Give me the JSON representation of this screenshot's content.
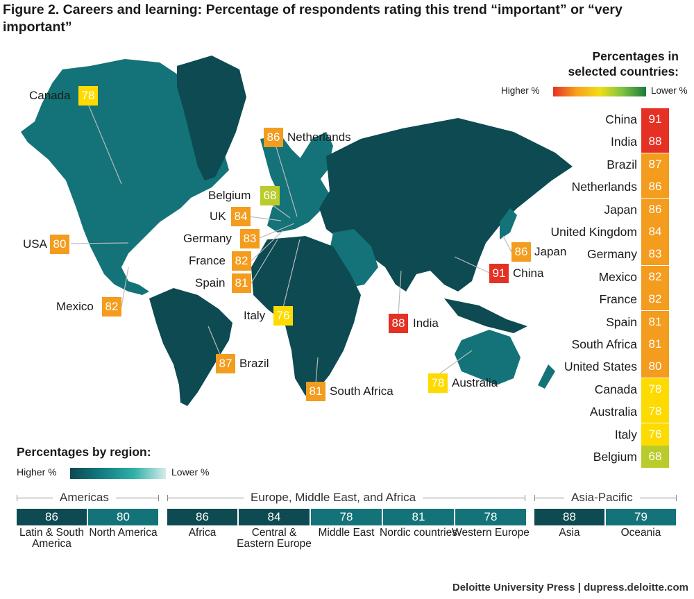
{
  "title": "Figure 2. Careers and learning: Percentage of respondents rating this trend “important” or “very important”",
  "sidebar": {
    "heading_line1": "Percentages in",
    "heading_line2": "selected countries:",
    "legend_high": "Higher %",
    "legend_low": "Lower %"
  },
  "region_section": {
    "heading": "Percentages by region:",
    "legend_high": "Higher %",
    "legend_low": "Lower %"
  },
  "footer": "Deloitte University Press  |  dupress.deloitte.com",
  "colors": {
    "dark_teal": "#0d4a51",
    "mid_teal": "#137378",
    "red": "#e53124",
    "orange": "#f39c1e",
    "yellow": "#fedb00",
    "green": "#b9cc2b"
  },
  "chart_data": [
    {
      "type": "table",
      "title": "Percentages in selected countries:",
      "countries": [
        {
          "name": "China",
          "value": 91,
          "color": "#e53124"
        },
        {
          "name": "India",
          "value": 88,
          "color": "#e53124"
        },
        {
          "name": "Brazil",
          "value": 87,
          "color": "#f39c1e"
        },
        {
          "name": "Netherlands",
          "value": 86,
          "color": "#f39c1e"
        },
        {
          "name": "Japan",
          "value": 86,
          "color": "#f39c1e"
        },
        {
          "name": "United Kingdom",
          "value": 84,
          "color": "#f39c1e"
        },
        {
          "name": "Germany",
          "value": 83,
          "color": "#f39c1e"
        },
        {
          "name": "Mexico",
          "value": 82,
          "color": "#f39c1e"
        },
        {
          "name": "France",
          "value": 82,
          "color": "#f39c1e"
        },
        {
          "name": "Spain",
          "value": 81,
          "color": "#f39c1e"
        },
        {
          "name": "South Africa",
          "value": 81,
          "color": "#f39c1e"
        },
        {
          "name": "United States",
          "value": 80,
          "color": "#f39c1e"
        },
        {
          "name": "Canada",
          "value": 78,
          "color": "#fedb00"
        },
        {
          "name": "Australia",
          "value": 78,
          "color": "#fedb00"
        },
        {
          "name": "Italy",
          "value": 76,
          "color": "#fedb00"
        },
        {
          "name": "Belgium",
          "value": 68,
          "color": "#b9cc2b"
        }
      ]
    },
    {
      "type": "table",
      "title": "Percentages by region:",
      "groups": [
        {
          "name": "Americas",
          "regions": [
            {
              "name": "Latin & South America",
              "value": 86,
              "color": "#0d4a51"
            },
            {
              "name": "North America",
              "value": 80,
              "color": "#137378"
            }
          ]
        },
        {
          "name": "Europe, Middle East, and Africa",
          "regions": [
            {
              "name": "Africa",
              "value": 86,
              "color": "#0d4a51"
            },
            {
              "name": "Central & Eastern Europe",
              "value": 84,
              "color": "#0d4a51"
            },
            {
              "name": "Middle East",
              "value": 78,
              "color": "#137378"
            },
            {
              "name": "Nordic countries",
              "value": 81,
              "color": "#137378"
            },
            {
              "name": "Western Europe",
              "value": 78,
              "color": "#137378"
            }
          ]
        },
        {
          "name": "Asia-Pacific",
          "regions": [
            {
              "name": "Asia",
              "value": 88,
              "color": "#0d4a51"
            },
            {
              "name": "Oceania",
              "value": 79,
              "color": "#137378"
            }
          ]
        }
      ]
    }
  ],
  "map_labels": [
    {
      "name": "Canada",
      "value": 78,
      "color": "#fedb00"
    },
    {
      "name": "Netherlands",
      "value": 86,
      "color": "#f39c1e"
    },
    {
      "name": "Belgium",
      "value": 68,
      "color": "#b9cc2b"
    },
    {
      "name": "UK",
      "value": 84,
      "color": "#f39c1e"
    },
    {
      "name": "USA",
      "value": 80,
      "color": "#f39c1e"
    },
    {
      "name": "Germany",
      "value": 83,
      "color": "#f39c1e"
    },
    {
      "name": "France",
      "value": 82,
      "color": "#f39c1e"
    },
    {
      "name": "Spain",
      "value": 81,
      "color": "#f39c1e"
    },
    {
      "name": "Mexico",
      "value": 82,
      "color": "#f39c1e"
    },
    {
      "name": "Italy",
      "value": 76,
      "color": "#fedb00"
    },
    {
      "name": "Brazil",
      "value": 87,
      "color": "#f39c1e"
    },
    {
      "name": "South Africa",
      "value": 81,
      "color": "#f39c1e"
    },
    {
      "name": "Australia",
      "value": 78,
      "color": "#fedb00"
    },
    {
      "name": "India",
      "value": 88,
      "color": "#e53124"
    },
    {
      "name": "China",
      "value": 91,
      "color": "#e53124"
    },
    {
      "name": "Japan",
      "value": 86,
      "color": "#f39c1e"
    }
  ]
}
